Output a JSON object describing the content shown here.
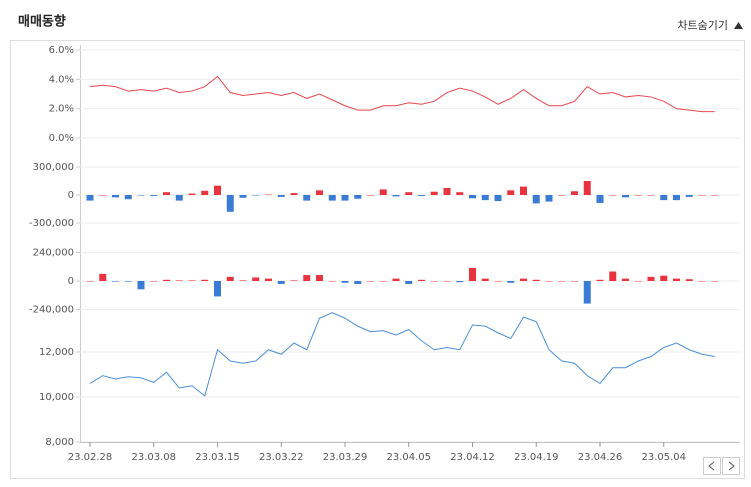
{
  "header": {
    "title": "매매동향",
    "toggle": "차트숨기기"
  },
  "chart_data": [
    {
      "type": "line",
      "color": "#e8474f",
      "ylim": [
        0,
        6
      ],
      "yticks": [
        {
          "value": 0,
          "label": "0.0%"
        },
        {
          "value": 2,
          "label": "2.0%"
        },
        {
          "value": 4,
          "label": "4.0%"
        },
        {
          "value": 6,
          "label": "6.0%"
        }
      ],
      "values": [
        3.5,
        3.6,
        3.5,
        3.2,
        3.3,
        3.2,
        3.4,
        3.1,
        3.2,
        3.5,
        4.2,
        3.1,
        2.9,
        3.0,
        3.1,
        2.9,
        3.1,
        2.7,
        3.0,
        2.6,
        2.2,
        1.9,
        1.9,
        2.2,
        2.2,
        2.4,
        2.3,
        2.5,
        3.1,
        3.4,
        3.2,
        2.8,
        2.3,
        2.7,
        3.3,
        2.7,
        2.2,
        2.2,
        2.5,
        3.5,
        3.0,
        3.1,
        2.8,
        2.9,
        2.8,
        2.5,
        2.0,
        1.9,
        1.8,
        1.8
      ]
    },
    {
      "type": "bar",
      "up_color": "#e8343f",
      "down_color": "#3a7bd5",
      "ylim": [
        -450000,
        450000
      ],
      "yticks": [
        {
          "value": -300000,
          "label": "-300,000"
        },
        0,
        {
          "value": 300000,
          "label": "300,000"
        }
      ],
      "values": [
        -60000,
        0,
        -25000,
        -45000,
        -5000,
        -10000,
        30000,
        -60000,
        15000,
        45000,
        100000,
        -180000,
        -30000,
        -5000,
        5000,
        -20000,
        20000,
        -60000,
        50000,
        -60000,
        -60000,
        -40000,
        0,
        60000,
        -15000,
        30000,
        -10000,
        35000,
        75000,
        30000,
        -35000,
        -55000,
        -65000,
        50000,
        90000,
        -90000,
        -70000,
        0,
        40000,
        150000,
        -85000,
        0,
        -25000,
        0,
        0,
        -55000,
        -55000,
        -20000,
        0,
        0
      ]
    },
    {
      "type": "bar",
      "up_color": "#e8343f",
      "down_color": "#3a7bd5",
      "ylim": [
        -300000,
        300000
      ],
      "yticks": [
        {
          "value": -240000,
          "label": "-240,000"
        },
        0,
        {
          "value": 240000,
          "label": "240,000"
        }
      ],
      "values": [
        0,
        60000,
        -5000,
        -5000,
        -70000,
        0,
        10000,
        5000,
        5000,
        10000,
        -130000,
        35000,
        5000,
        30000,
        20000,
        -25000,
        5000,
        50000,
        50000,
        0,
        -15000,
        -25000,
        0,
        0,
        20000,
        -25000,
        10000,
        0,
        0,
        -10000,
        110000,
        20000,
        0,
        -15000,
        20000,
        10000,
        0,
        0,
        0,
        -190000,
        10000,
        80000,
        20000,
        0,
        35000,
        45000,
        20000,
        15000,
        0,
        0
      ]
    },
    {
      "type": "line",
      "color": "#4a90d9",
      "ylim": [
        8000,
        14000
      ],
      "yticks": [
        {
          "value": 8000,
          "label": "8,000"
        },
        {
          "value": 10000,
          "label": "10,000"
        },
        {
          "value": 12000,
          "label": "12,000"
        }
      ],
      "values": [
        10600,
        10950,
        10800,
        10900,
        10850,
        10650,
        11100,
        10400,
        10500,
        10050,
        12100,
        11600,
        11500,
        11600,
        12100,
        11900,
        12400,
        12100,
        13500,
        13750,
        13500,
        13150,
        12900,
        12950,
        12750,
        13000,
        12500,
        12100,
        12200,
        12100,
        13200,
        13150,
        12850,
        12600,
        13550,
        13350,
        12100,
        11600,
        11500,
        10950,
        10600,
        11300,
        11300,
        11600,
        11800,
        12200,
        12400,
        12100,
        11900,
        11800
      ],
      "categories": [
        "23.02.28",
        null,
        null,
        null,
        null,
        "23.03.08",
        null,
        null,
        null,
        null,
        "23.03.15",
        null,
        null,
        null,
        null,
        "23.03.22",
        null,
        null,
        null,
        null,
        "23.03.29",
        null,
        null,
        null,
        null,
        "23.04.05",
        null,
        null,
        null,
        null,
        "23.04.12",
        null,
        null,
        null,
        null,
        "23.04.19",
        null,
        null,
        null,
        null,
        "23.04.26",
        null,
        null,
        null,
        null,
        "23.05.04",
        null,
        null,
        null,
        null
      ]
    }
  ]
}
